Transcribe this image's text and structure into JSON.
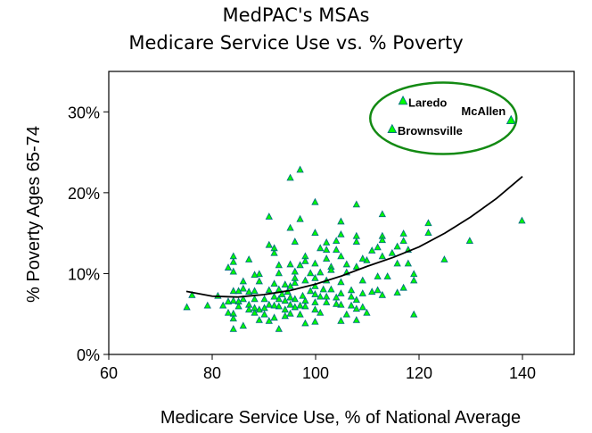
{
  "chart_data": {
    "type": "scatter",
    "title": "MedPAC's MSAs",
    "subtitle": "Medicare Service Use vs. % Poverty",
    "xlabel": "Medicare Service Use, % of National Average",
    "ylabel": "% Poverty Ages 65-74",
    "xlim": [
      60,
      150
    ],
    "ylim": [
      0,
      35
    ],
    "xticks": [
      60,
      80,
      100,
      120,
      140
    ],
    "yticks": [
      0,
      10,
      20,
      30
    ],
    "ytick_labels": [
      "0%",
      "10%",
      "20%",
      "30%"
    ],
    "grid": false,
    "marker_color": "#00ff00",
    "marker_edge_color": "#007080",
    "ellipse_color": "#138a13",
    "points": [
      [
        97.0,
        22.8
      ],
      [
        95.1,
        21.8
      ],
      [
        99.9,
        18.8
      ],
      [
        107.9,
        18.5
      ],
      [
        91.0,
        17.0
      ],
      [
        97.0,
        16.7
      ],
      [
        112.9,
        17.3
      ],
      [
        104.9,
        16.4
      ],
      [
        95.1,
        15.6
      ],
      [
        99.9,
        15.0
      ],
      [
        104.9,
        14.8
      ],
      [
        107.9,
        14.6
      ],
      [
        107.9,
        13.9
      ],
      [
        112.9,
        14.6
      ],
      [
        112.9,
        14.1
      ],
      [
        117.0,
        14.9
      ],
      [
        117.0,
        14.0
      ],
      [
        121.8,
        16.2
      ],
      [
        121.8,
        15.0
      ],
      [
        139.9,
        16.5
      ],
      [
        129.8,
        14.0
      ],
      [
        124.9,
        11.7
      ],
      [
        119.0,
        4.9
      ],
      [
        119.0,
        9.9
      ],
      [
        119.0,
        9.1
      ],
      [
        117.9,
        12.9
      ],
      [
        117.9,
        11.2
      ],
      [
        115.8,
        13.3
      ],
      [
        115.8,
        11.2
      ],
      [
        115.8,
        7.6
      ],
      [
        117.0,
        8.2
      ],
      [
        114.8,
        12.5
      ],
      [
        112.9,
        12.1
      ],
      [
        112.0,
        13.2
      ],
      [
        110.9,
        12.8
      ],
      [
        112.0,
        9.6
      ],
      [
        113.9,
        9.6
      ],
      [
        112.0,
        7.9
      ],
      [
        110.9,
        7.7
      ],
      [
        112.9,
        7.3
      ],
      [
        109.9,
        11.6
      ],
      [
        109.1,
        11.8
      ],
      [
        107.9,
        10.8
      ],
      [
        109.1,
        9.1
      ],
      [
        109.1,
        7.5
      ],
      [
        107.9,
        6.7
      ],
      [
        107.9,
        5.6
      ],
      [
        109.1,
        5.8
      ],
      [
        109.9,
        5.1
      ],
      [
        107.9,
        4.2
      ],
      [
        106.0,
        4.9
      ],
      [
        104.9,
        4.1
      ],
      [
        104.9,
        6.1
      ],
      [
        106.9,
        6.0
      ],
      [
        106.9,
        7.1
      ],
      [
        106.9,
        7.9
      ],
      [
        104.9,
        7.5
      ],
      [
        104.9,
        8.9
      ],
      [
        106.0,
        11.1
      ],
      [
        106.0,
        10.1
      ],
      [
        104.9,
        12.1
      ],
      [
        104.0,
        14.0
      ],
      [
        104.0,
        12.9
      ],
      [
        102.1,
        13.8
      ],
      [
        102.1,
        12.9
      ],
      [
        100.9,
        13.1
      ],
      [
        102.1,
        11.8
      ],
      [
        103.0,
        10.8
      ],
      [
        103.0,
        10.4
      ],
      [
        100.9,
        10.1
      ],
      [
        102.1,
        9.1
      ],
      [
        103.0,
        8.0
      ],
      [
        104.0,
        7.0
      ],
      [
        104.0,
        6.2
      ],
      [
        102.1,
        7.1
      ],
      [
        102.1,
        6.4
      ],
      [
        100.9,
        7.1
      ],
      [
        100.9,
        5.1
      ],
      [
        99.9,
        5.5
      ],
      [
        99.9,
        4.0
      ],
      [
        99.9,
        6.4
      ],
      [
        99.9,
        7.4
      ],
      [
        99.9,
        8.4
      ],
      [
        99.9,
        9.4
      ],
      [
        99.9,
        11.2
      ],
      [
        98.0,
        12.1
      ],
      [
        98.0,
        11.5
      ],
      [
        97.0,
        11.0
      ],
      [
        98.0,
        9.1
      ],
      [
        99.0,
        10.0
      ],
      [
        99.0,
        7.8
      ],
      [
        98.0,
        6.6
      ],
      [
        98.0,
        5.9
      ],
      [
        98.0,
        3.8
      ],
      [
        97.0,
        4.9
      ],
      [
        97.0,
        6.0
      ],
      [
        96.0,
        13.9
      ],
      [
        96.0,
        10.2
      ],
      [
        96.0,
        9.4
      ],
      [
        96.0,
        8.8
      ],
      [
        96.0,
        6.8
      ],
      [
        96.0,
        5.8
      ],
      [
        95.1,
        11.1
      ],
      [
        95.1,
        8.4
      ],
      [
        95.1,
        7.0
      ],
      [
        95.1,
        6.1
      ],
      [
        95.1,
        5.0
      ],
      [
        94.1,
        8.6
      ],
      [
        94.1,
        6.6
      ],
      [
        94.1,
        5.5
      ],
      [
        94.1,
        4.7
      ],
      [
        92.9,
        11.0
      ],
      [
        92.9,
        10.0
      ],
      [
        92.9,
        8.0
      ],
      [
        92.9,
        6.8
      ],
      [
        92.9,
        5.9
      ],
      [
        92.9,
        3.1
      ],
      [
        92.0,
        13.1
      ],
      [
        92.0,
        12.5
      ],
      [
        92.0,
        8.7
      ],
      [
        92.0,
        7.1
      ],
      [
        92.0,
        6.0
      ],
      [
        92.0,
        4.5
      ],
      [
        91.0,
        13.5
      ],
      [
        91.0,
        7.9
      ],
      [
        91.0,
        6.1
      ],
      [
        91.0,
        4.1
      ],
      [
        90.1,
        6.8
      ],
      [
        90.1,
        5.7
      ],
      [
        90.1,
        4.9
      ],
      [
        89.1,
        9.9
      ],
      [
        89.1,
        9.0
      ],
      [
        89.1,
        5.5
      ],
      [
        89.1,
        4.2
      ],
      [
        88.2,
        9.8
      ],
      [
        88.2,
        7.8
      ],
      [
        88.2,
        6.8
      ],
      [
        88.2,
        5.7
      ],
      [
        88.2,
        5.1
      ],
      [
        87.1,
        11.7
      ],
      [
        87.1,
        7.7
      ],
      [
        87.1,
        6.1
      ],
      [
        87.1,
        5.5
      ],
      [
        86.0,
        9.0
      ],
      [
        86.0,
        8.1
      ],
      [
        86.0,
        6.8
      ],
      [
        86.0,
        3.5
      ],
      [
        85.1,
        7.8
      ],
      [
        85.1,
        6.5
      ],
      [
        85.1,
        5.9
      ],
      [
        84.1,
        12.1
      ],
      [
        84.1,
        11.4
      ],
      [
        84.1,
        10.2
      ],
      [
        84.1,
        7.8
      ],
      [
        84.1,
        6.6
      ],
      [
        84.1,
        5.0
      ],
      [
        84.1,
        4.4
      ],
      [
        84.1,
        3.1
      ],
      [
        83.1,
        10.7
      ],
      [
        83.1,
        6.5
      ],
      [
        83.1,
        5.1
      ],
      [
        82.1,
        6.0
      ],
      [
        81.1,
        7.2
      ],
      [
        79.1,
        6.0
      ],
      [
        76.1,
        7.3
      ],
      [
        75.1,
        5.8
      ],
      [
        93.5,
        7.4
      ],
      [
        94.6,
        7.7
      ],
      [
        97.5,
        7.2
      ],
      [
        101.5,
        8.0
      ]
    ],
    "labeled_points": [
      {
        "label": "Laredo",
        "x": 116.9,
        "y": 31.3
      },
      {
        "label": "McAllen",
        "x": 137.8,
        "y": 28.9
      },
      {
        "label": "Brownsville",
        "x": 114.8,
        "y": 27.8
      }
    ],
    "trend_line": [
      [
        75,
        7.8
      ],
      [
        80,
        7.2
      ],
      [
        85,
        7.1
      ],
      [
        90,
        7.4
      ],
      [
        95,
        7.9
      ],
      [
        100,
        8.7
      ],
      [
        105,
        9.7
      ],
      [
        110,
        10.9
      ],
      [
        115,
        12.0
      ],
      [
        120,
        13.3
      ],
      [
        125,
        15.0
      ],
      [
        130,
        17.0
      ],
      [
        135,
        19.3
      ],
      [
        140,
        22.0
      ]
    ]
  }
}
